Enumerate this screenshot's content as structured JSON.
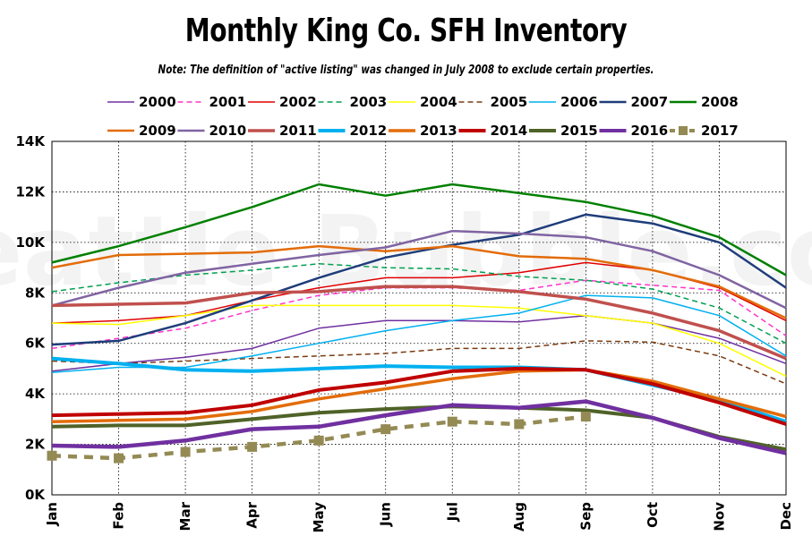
{
  "title": "Monthly King Co. SFH Inventory",
  "subtitle": "Note: The definition of \"active listing\" was changed in July 2008 to exclude certain properties.",
  "watermark": "Seattle Bubble.com",
  "chart_data": {
    "type": "line",
    "title": "Monthly King Co. SFH Inventory",
    "subtitle": "Note: The definition of \"active listing\" was changed in July 2008 to exclude certain properties.",
    "xlabel": "",
    "ylabel": "",
    "categories": [
      "Jan",
      "Feb",
      "Mar",
      "Apr",
      "May",
      "Jun",
      "Jul",
      "Aug",
      "Sep",
      "Oct",
      "Nov",
      "Dec"
    ],
    "ylim": [
      0,
      14000
    ],
    "yticks": [
      0,
      2000,
      4000,
      6000,
      8000,
      10000,
      12000,
      14000
    ],
    "ytick_labels": [
      "0K",
      "2K",
      "4K",
      "6K",
      "8K",
      "10K",
      "12K",
      "14K"
    ],
    "grid": "dotted",
    "legend_position": "top",
    "series": [
      {
        "name": "2000",
        "color": "#7030a0",
        "dash": "solid",
        "width": 1.5,
        "values": [
          4900,
          5200,
          5450,
          5800,
          6600,
          6900,
          6900,
          6850,
          7100,
          6800,
          6200,
          5200
        ]
      },
      {
        "name": "2001",
        "color": "#ff33cc",
        "dash": "dashed",
        "width": 1.5,
        "values": [
          5800,
          6200,
          6600,
          7300,
          7900,
          8200,
          8200,
          8100,
          8500,
          8300,
          8100,
          6300
        ]
      },
      {
        "name": "2002",
        "color": "#e00000",
        "dash": "solid",
        "width": 1.5,
        "values": [
          6800,
          6900,
          7100,
          7700,
          8200,
          8600,
          8600,
          8800,
          9200,
          8900,
          8200,
          6900
        ]
      },
      {
        "name": "2003",
        "color": "#00a050",
        "dash": "dashed",
        "width": 1.5,
        "values": [
          8050,
          8400,
          8700,
          8900,
          9150,
          9000,
          8950,
          8650,
          8500,
          8150,
          7400,
          6000
        ]
      },
      {
        "name": "2004",
        "color": "#ffff00",
        "dash": "solid",
        "width": 1.5,
        "values": [
          6800,
          6750,
          7100,
          7500,
          7500,
          7500,
          7500,
          7400,
          7100,
          6800,
          6000,
          4700
        ]
      },
      {
        "name": "2005",
        "color": "#7a3b10",
        "dash": "dashed",
        "width": 1.5,
        "values": [
          5300,
          5200,
          5300,
          5400,
          5500,
          5600,
          5800,
          5800,
          6100,
          6050,
          5500,
          4400
        ]
      },
      {
        "name": "2006",
        "color": "#00b0f0",
        "dash": "solid",
        "width": 1.5,
        "values": [
          4850,
          5050,
          5050,
          5500,
          6000,
          6500,
          6900,
          7200,
          7900,
          7800,
          7100,
          5500
        ]
      },
      {
        "name": "2007",
        "color": "#1f3d7a",
        "dash": "solid",
        "width": 2.5,
        "values": [
          5950,
          6100,
          6800,
          7700,
          8600,
          9400,
          9900,
          10300,
          11100,
          10750,
          10000,
          8200
        ]
      },
      {
        "name": "2008",
        "color": "#008000",
        "dash": "solid",
        "width": 2.5,
        "values": [
          9200,
          9850,
          10600,
          11400,
          12300,
          11850,
          12300,
          11950,
          11600,
          11050,
          10200,
          8700
        ]
      },
      {
        "name": "2009",
        "color": "#e36c09",
        "dash": "solid",
        "width": 2.5,
        "values": [
          9000,
          9500,
          9550,
          9600,
          9850,
          9650,
          9850,
          9450,
          9350,
          8900,
          8250,
          7000
        ]
      },
      {
        "name": "2010",
        "color": "#8064a2",
        "dash": "solid",
        "width": 2.5,
        "values": [
          7500,
          8200,
          8800,
          9150,
          9500,
          9800,
          10450,
          10350,
          10200,
          9650,
          8700,
          7400
        ]
      },
      {
        "name": "2011",
        "color": "#c0504d",
        "dash": "solid",
        "width": 3.5,
        "values": [
          7500,
          7550,
          7600,
          8000,
          8050,
          8250,
          8250,
          8050,
          7750,
          7200,
          6500,
          5400
        ]
      },
      {
        "name": "2012",
        "color": "#00b0f0",
        "dash": "solid",
        "width": 4,
        "values": [
          5400,
          5200,
          4950,
          4900,
          5000,
          5100,
          5050,
          5050,
          4950,
          4350,
          3750,
          2900
        ]
      },
      {
        "name": "2013",
        "color": "#e36c09",
        "dash": "solid",
        "width": 3.5,
        "values": [
          2900,
          2950,
          3000,
          3300,
          3800,
          4200,
          4600,
          4900,
          4950,
          4500,
          3800,
          3100
        ]
      },
      {
        "name": "2014",
        "color": "#c00000",
        "dash": "solid",
        "width": 4,
        "values": [
          3150,
          3200,
          3250,
          3550,
          4150,
          4450,
          4900,
          5000,
          4950,
          4400,
          3650,
          2800
        ]
      },
      {
        "name": "2015",
        "color": "#4f6228",
        "dash": "solid",
        "width": 4,
        "values": [
          2700,
          2750,
          2750,
          3000,
          3250,
          3400,
          3500,
          3450,
          3350,
          3050,
          2300,
          1800
        ]
      },
      {
        "name": "2016",
        "color": "#7030a0",
        "dash": "solid",
        "width": 4.5,
        "values": [
          1950,
          1900,
          2150,
          2600,
          2700,
          3150,
          3550,
          3450,
          3700,
          3050,
          2250,
          1650
        ]
      },
      {
        "name": "2017",
        "color": "#948a54",
        "dash": "dashed-marker",
        "width": 4.5,
        "values": [
          1550,
          1450,
          1700,
          1900,
          2150,
          2600,
          2900,
          2800,
          3100,
          null,
          null,
          null
        ]
      }
    ]
  }
}
